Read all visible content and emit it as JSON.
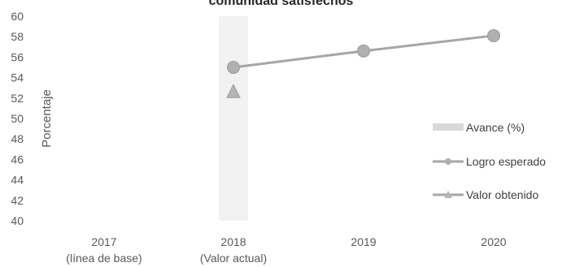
{
  "chart_data": {
    "type": "line",
    "title": "comunidad satisfechos",
    "ylabel": "Porcentaje",
    "xlabel": "",
    "ylim": [
      40,
      60
    ],
    "yticks": [
      40,
      42,
      44,
      46,
      48,
      50,
      52,
      54,
      56,
      58,
      60
    ],
    "categories": [
      [
        "2017",
        "(línea de base)"
      ],
      [
        "2018",
        "(Valor actual)"
      ],
      [
        "2019"
      ],
      [
        "2020"
      ]
    ],
    "series": [
      {
        "name": "Avance (%)",
        "kind": "bar",
        "color": "#f2f2f2",
        "values": [
          null,
          60,
          null,
          null
        ]
      },
      {
        "name": "Logro esperado",
        "kind": "line",
        "marker": "circle",
        "color": "#a6a6a6",
        "values": [
          null,
          55,
          56.6,
          58.1
        ]
      },
      {
        "name": "Valor obtenido",
        "kind": "line",
        "marker": "triangle",
        "color": "#a6a6a6",
        "values": [
          null,
          52.6,
          null,
          null
        ]
      }
    ],
    "legend": "right",
    "grid": false
  }
}
